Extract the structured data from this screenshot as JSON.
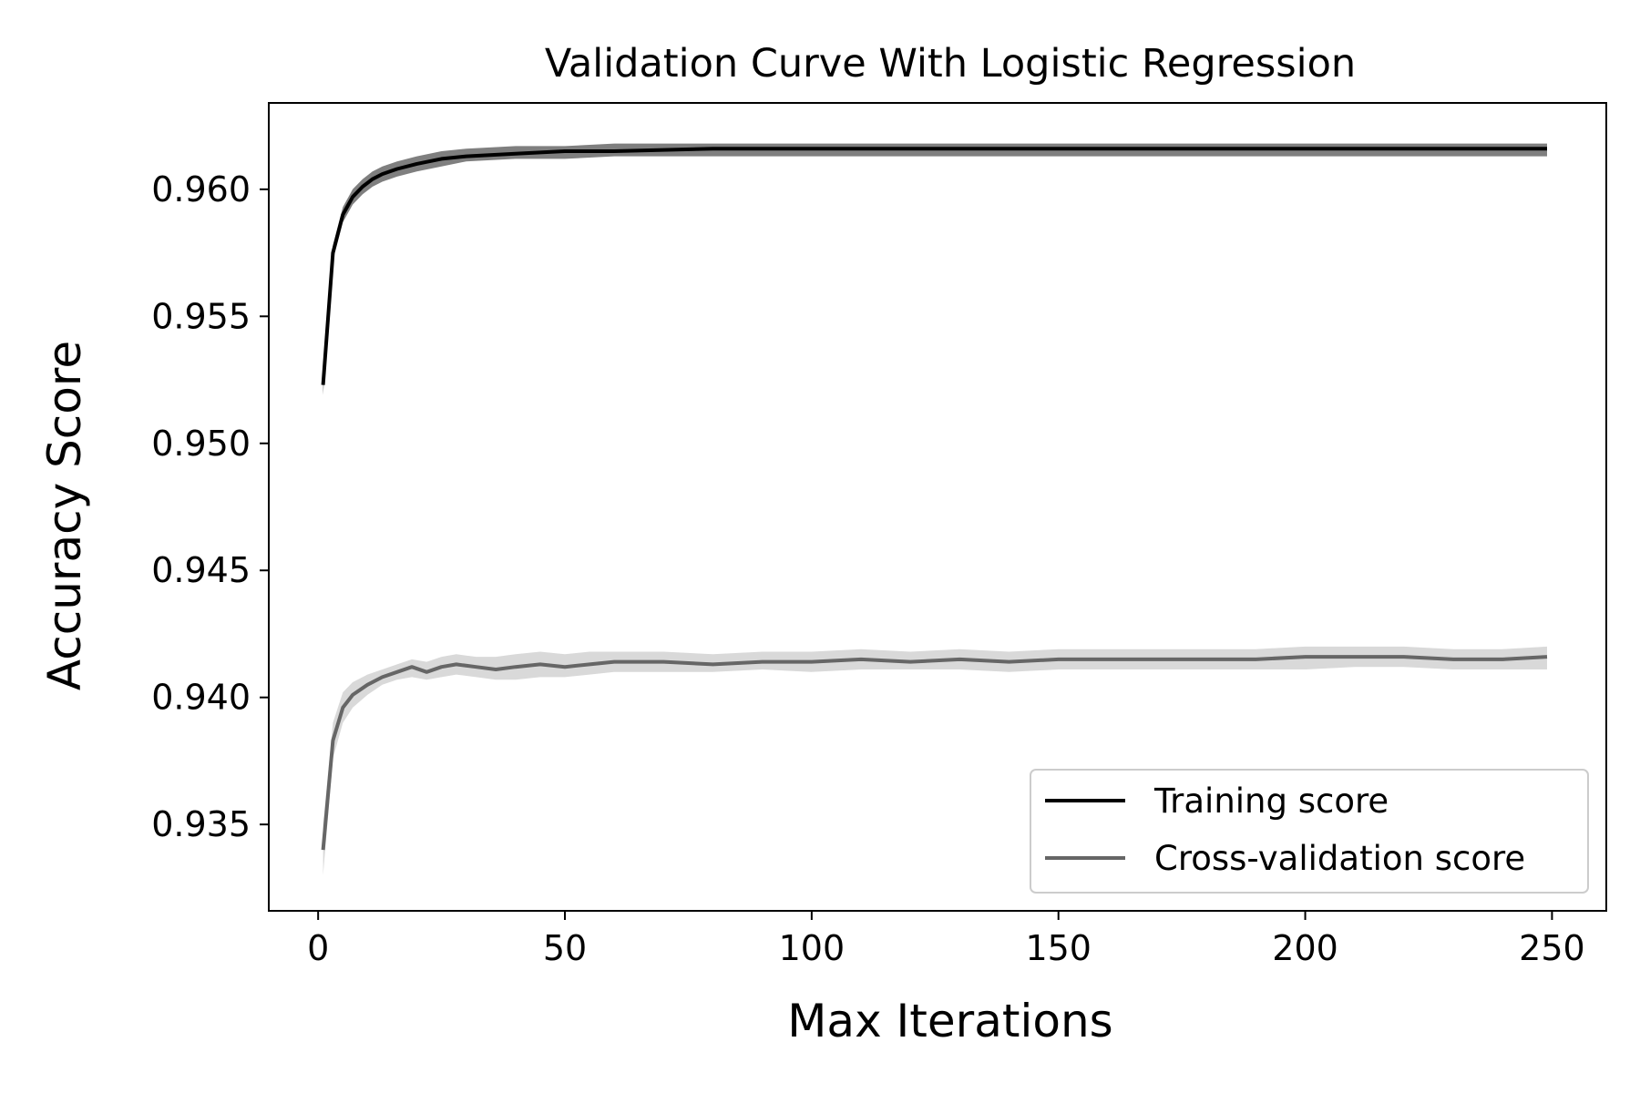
{
  "chart_data": {
    "type": "line",
    "title": "Validation Curve With Logistic Regression",
    "xlabel": "Max Iterations",
    "ylabel": "Accuracy Score",
    "xlim": [
      -10,
      261
    ],
    "ylim": [
      0.9316,
      0.9634
    ],
    "xticks": [
      0,
      50,
      100,
      150,
      200,
      250
    ],
    "xtick_labels": [
      "0",
      "50",
      "100",
      "150",
      "200",
      "250"
    ],
    "yticks": [
      0.935,
      0.94,
      0.945,
      0.95,
      0.955,
      0.96
    ],
    "ytick_labels": [
      "0.935",
      "0.940",
      "0.945",
      "0.950",
      "0.955",
      "0.960"
    ],
    "grid": false,
    "legend_position": "lower-right",
    "series": [
      {
        "name": "Training score",
        "color": "#000000",
        "band_color": "#7f7f7f",
        "x": [
          1,
          3,
          5,
          7,
          9,
          11,
          13,
          16,
          20,
          25,
          30,
          40,
          50,
          60,
          80,
          100,
          150,
          200,
          249
        ],
        "y": [
          0.9523,
          0.9575,
          0.959,
          0.9597,
          0.9601,
          0.9604,
          0.9606,
          0.9608,
          0.961,
          0.9612,
          0.9613,
          0.9614,
          0.9615,
          0.9615,
          0.9616,
          0.9616,
          0.9616,
          0.9616,
          0.9616
        ],
        "y_lower": [
          0.9519,
          0.9572,
          0.9587,
          0.9594,
          0.9598,
          0.9601,
          0.9603,
          0.9605,
          0.9607,
          0.9609,
          0.9611,
          0.9612,
          0.9612,
          0.9613,
          0.9613,
          0.9613,
          0.9613,
          0.9613,
          0.9613
        ],
        "y_upper": [
          0.9527,
          0.9578,
          0.9593,
          0.96,
          0.9604,
          0.9607,
          0.9609,
          0.9611,
          0.9613,
          0.9615,
          0.9616,
          0.9617,
          0.9617,
          0.9618,
          0.9618,
          0.9618,
          0.9618,
          0.9618,
          0.9618
        ]
      },
      {
        "name": "Cross-validation score",
        "color": "#666666",
        "band_color": "#d9d9d9",
        "x": [
          1,
          3,
          5,
          7,
          10,
          13,
          16,
          19,
          22,
          25,
          28,
          32,
          36,
          40,
          45,
          50,
          55,
          60,
          70,
          80,
          90,
          100,
          110,
          120,
          130,
          140,
          150,
          160,
          170,
          180,
          190,
          200,
          210,
          220,
          230,
          240,
          249
        ],
        "y": [
          0.934,
          0.9383,
          0.9396,
          0.9401,
          0.9405,
          0.9408,
          0.941,
          0.9412,
          0.941,
          0.9412,
          0.9413,
          0.9412,
          0.9411,
          0.9412,
          0.9413,
          0.9412,
          0.9413,
          0.9414,
          0.9414,
          0.9413,
          0.9414,
          0.9414,
          0.9415,
          0.9414,
          0.9415,
          0.9414,
          0.9415,
          0.9415,
          0.9415,
          0.9415,
          0.9415,
          0.9416,
          0.9416,
          0.9416,
          0.9415,
          0.9415,
          0.9416
        ],
        "y_lower": [
          0.933,
          0.9376,
          0.939,
          0.9396,
          0.9401,
          0.9405,
          0.9407,
          0.9408,
          0.9407,
          0.9408,
          0.9409,
          0.9408,
          0.9407,
          0.9407,
          0.9408,
          0.9408,
          0.9409,
          0.941,
          0.941,
          0.941,
          0.9411,
          0.941,
          0.9411,
          0.9411,
          0.9411,
          0.941,
          0.9411,
          0.9411,
          0.9411,
          0.9411,
          0.9411,
          0.9411,
          0.9412,
          0.9412,
          0.9411,
          0.9411,
          0.9411
        ],
        "y_upper": [
          0.935,
          0.939,
          0.9402,
          0.9406,
          0.9409,
          0.9411,
          0.9413,
          0.9415,
          0.9414,
          0.9416,
          0.9417,
          0.9416,
          0.9416,
          0.9417,
          0.9418,
          0.9417,
          0.9418,
          0.9418,
          0.9418,
          0.9417,
          0.9418,
          0.9418,
          0.9419,
          0.9418,
          0.9419,
          0.9418,
          0.9419,
          0.9419,
          0.9419,
          0.9419,
          0.9419,
          0.942,
          0.942,
          0.942,
          0.9419,
          0.9419,
          0.942
        ]
      }
    ]
  }
}
